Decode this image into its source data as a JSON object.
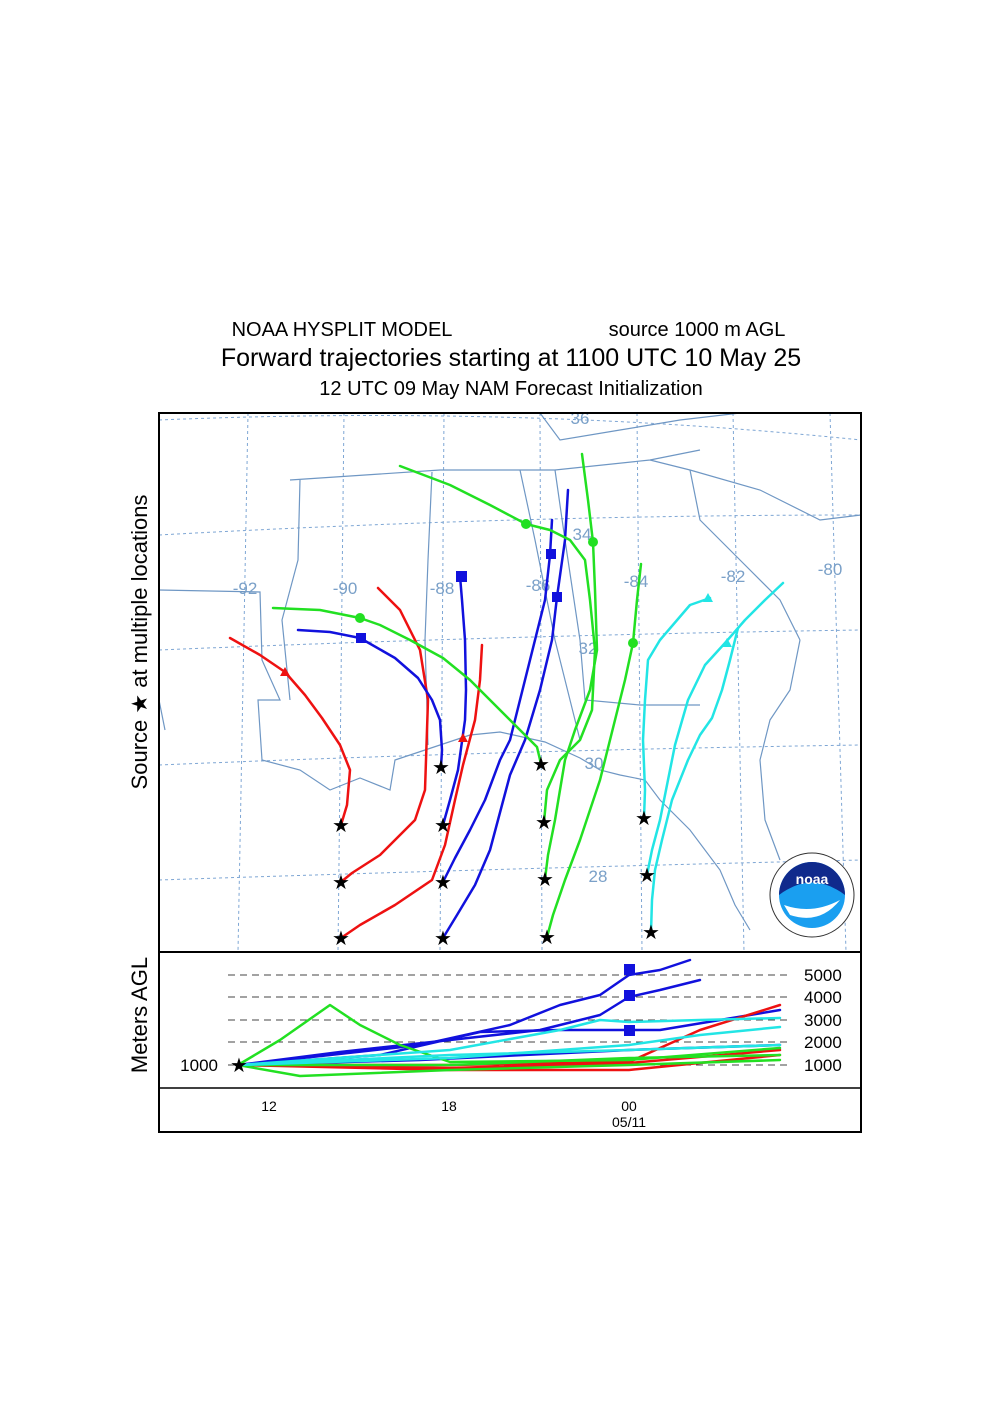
{
  "header": {
    "left": "NOAA HYSPLIT MODEL",
    "right": "source 1000 m AGL",
    "title": "Forward trajectories starting at 1100 UTC 10 May 25",
    "subtitle": "12 UTC 09 May    NAM   Forecast Initialization"
  },
  "map": {
    "y_label": "Source ★  at multiple locations",
    "longitude_labels": [
      "-92",
      "-90",
      "-88",
      "-86",
      "-84",
      "-82",
      "-80"
    ],
    "latitude_labels": [
      "36",
      "34",
      "32",
      "30",
      "28"
    ],
    "logo": "noaa"
  },
  "height_panel": {
    "y_label": "Meters AGL",
    "start_label": "1000",
    "levels": [
      "5000",
      "4000",
      "3000",
      "2000",
      "1000"
    ],
    "time_labels": [
      "12",
      "18",
      "00"
    ],
    "date_label": "05/11"
  }
}
